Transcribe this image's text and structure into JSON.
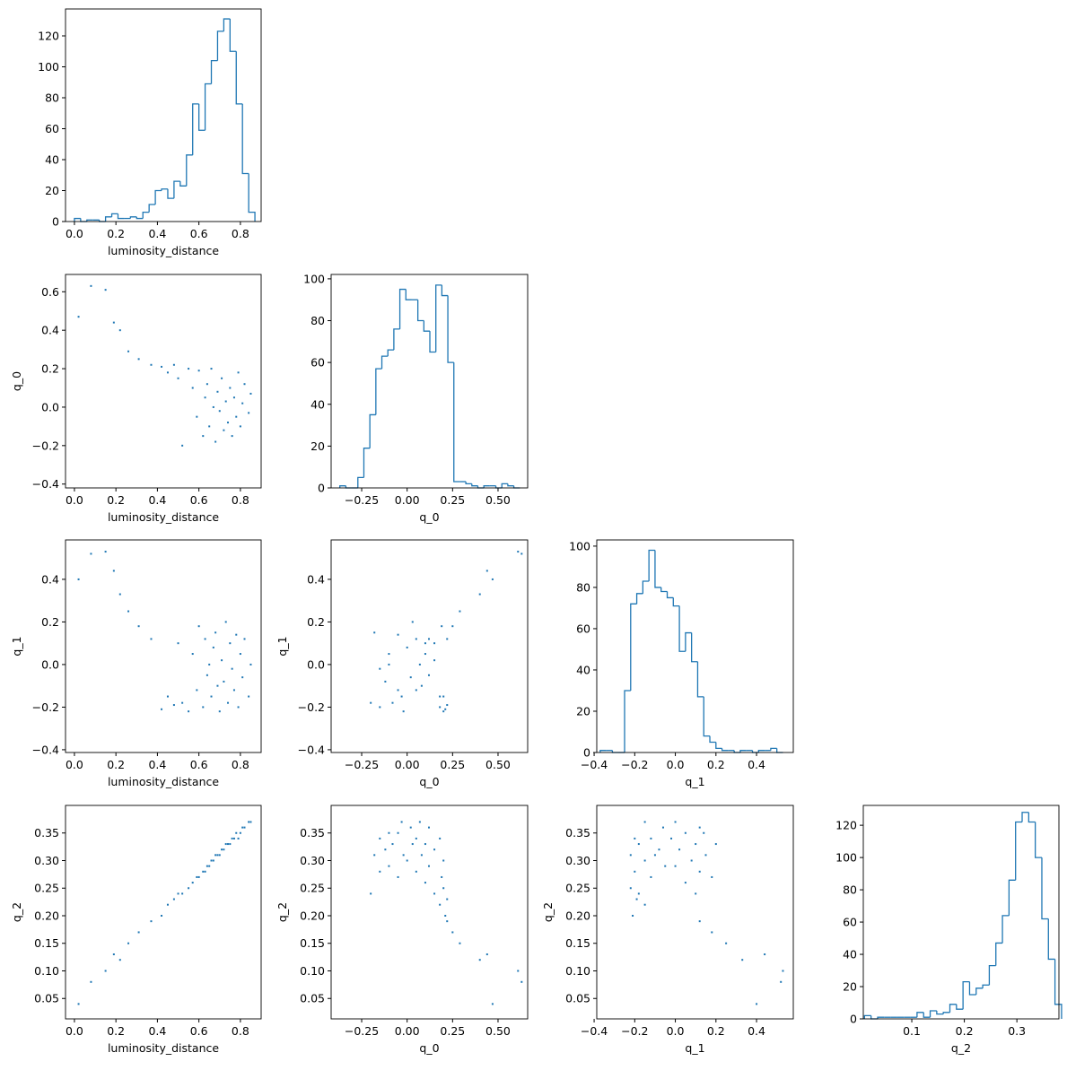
{
  "chart_data": [
    {
      "type": "histogram",
      "color": "#1f77b4",
      "xlabel": "luminosity_distance",
      "bins": [
        0,
        0.03,
        0.06,
        0.09,
        0.12,
        0.15,
        0.18,
        0.21,
        0.24,
        0.27,
        0.3,
        0.33,
        0.36,
        0.39,
        0.42,
        0.45,
        0.48,
        0.51,
        0.54,
        0.57,
        0.6,
        0.63,
        0.66,
        0.69,
        0.72,
        0.75,
        0.78,
        0.81,
        0.84,
        0.87
      ],
      "values": [
        2,
        0,
        1,
        1,
        0,
        3,
        5,
        2,
        2,
        3,
        2,
        6,
        11,
        20,
        21,
        15,
        26,
        23,
        43,
        76,
        59,
        89,
        104,
        123,
        131,
        110,
        76,
        31,
        6
      ],
      "xlim": [
        -0.043,
        0.9
      ],
      "ylim": [
        0,
        137.4
      ],
      "xticks": [
        {
          "value": 0,
          "label": "0.0"
        },
        0.2,
        0.4,
        0.6,
        0.8
      ],
      "yticks": [
        0,
        20,
        40,
        60,
        80,
        100,
        120
      ]
    },
    {
      "type": "scatter",
      "color": "#1f77b4",
      "xlabel": "luminosity_distance",
      "ylabel": "q_0",
      "x": [
        0.02,
        0.08,
        0.15,
        0.19,
        0.22,
        0.26,
        0.31,
        0.37,
        0.42,
        0.45,
        0.48,
        0.5,
        0.52,
        0.55,
        0.57,
        0.59,
        0.6,
        0.62,
        0.63,
        0.64,
        0.65,
        0.66,
        0.67,
        0.68,
        0.69,
        0.7,
        0.71,
        0.72,
        0.73,
        0.74,
        0.75,
        0.76,
        0.77,
        0.78,
        0.79,
        0.8,
        0.81,
        0.82,
        0.84,
        0.85
      ],
      "y": [
        0.47,
        0.63,
        0.61,
        0.44,
        0.4,
        0.29,
        0.25,
        0.22,
        0.21,
        0.18,
        0.22,
        0.15,
        -0.2,
        0.2,
        0.1,
        -0.05,
        0.19,
        -0.15,
        0.05,
        0.12,
        -0.1,
        0.2,
        0.0,
        -0.18,
        0.08,
        -0.02,
        0.15,
        -0.12,
        0.03,
        -0.08,
        0.1,
        -0.15,
        0.05,
        -0.05,
        0.18,
        -0.1,
        0.02,
        0.12,
        -0.03,
        0.07
      ],
      "xlim": [
        -0.043,
        0.9
      ],
      "ylim": [
        -0.42,
        0.69
      ],
      "xticks": [
        {
          "value": 0,
          "label": "0.0"
        },
        0.2,
        0.4,
        0.6,
        0.8
      ],
      "yticks": [
        {
          "value": -0.4,
          "label": "−0.4"
        },
        {
          "value": -0.2,
          "label": "−0.2"
        },
        {
          "value": 0,
          "label": "0.0"
        },
        0.2,
        0.4,
        0.6
      ]
    },
    {
      "type": "histogram",
      "color": "#1f77b4",
      "xlabel": "q_0",
      "bins": [
        -0.37,
        -0.337,
        -0.304,
        -0.271,
        -0.238,
        -0.205,
        -0.172,
        -0.139,
        -0.106,
        -0.073,
        -0.04,
        -0.007,
        0.026,
        0.059,
        0.092,
        0.125,
        0.158,
        0.191,
        0.224,
        0.257,
        0.29,
        0.323,
        0.356,
        0.389,
        0.422,
        0.455,
        0.488,
        0.521,
        0.554,
        0.587,
        0.62
      ],
      "values": [
        1,
        0,
        0,
        5,
        19,
        35,
        57,
        63,
        66,
        76,
        95,
        90,
        90,
        80,
        75,
        65,
        97,
        92,
        60,
        3,
        3,
        2,
        1,
        0,
        1,
        1,
        0,
        2,
        1,
        0
      ],
      "xlim": [
        -0.418,
        0.663
      ],
      "ylim": [
        0,
        102.1
      ],
      "xticks": [
        {
          "value": -0.25,
          "label": "−0.25"
        },
        {
          "value": 0,
          "label": "0.00"
        },
        0.25,
        {
          "value": 0.5,
          "label": "0.50"
        }
      ],
      "yticks": [
        0,
        20,
        40,
        60,
        80,
        100
      ]
    },
    {
      "type": "scatter",
      "color": "#1f77b4",
      "xlabel": "luminosity_distance",
      "ylabel": "q_1",
      "x": [
        0.02,
        0.08,
        0.15,
        0.19,
        0.22,
        0.26,
        0.31,
        0.37,
        0.42,
        0.45,
        0.48,
        0.5,
        0.52,
        0.55,
        0.57,
        0.59,
        0.6,
        0.62,
        0.63,
        0.64,
        0.65,
        0.66,
        0.67,
        0.68,
        0.69,
        0.7,
        0.71,
        0.72,
        0.73,
        0.74,
        0.75,
        0.76,
        0.77,
        0.78,
        0.79,
        0.8,
        0.81,
        0.82,
        0.84,
        0.85
      ],
      "y": [
        0.4,
        0.52,
        0.53,
        0.44,
        0.33,
        0.25,
        0.18,
        0.12,
        -0.21,
        -0.15,
        -0.19,
        0.1,
        -0.18,
        -0.22,
        0.05,
        -0.12,
        0.18,
        -0.2,
        0.12,
        -0.05,
        0.0,
        -0.15,
        0.08,
        0.15,
        -0.1,
        -0.22,
        0.02,
        -0.08,
        0.2,
        -0.18,
        0.1,
        -0.02,
        -0.12,
        0.14,
        -0.2,
        0.05,
        -0.06,
        0.12,
        -0.15,
        0.0
      ],
      "xlim": [
        -0.043,
        0.9
      ],
      "ylim": [
        -0.413,
        0.585
      ],
      "xticks": [
        {
          "value": 0,
          "label": "0.0"
        },
        0.2,
        0.4,
        0.6,
        0.8
      ],
      "yticks": [
        {
          "value": -0.4,
          "label": "−0.4"
        },
        {
          "value": -0.2,
          "label": "−0.2"
        },
        {
          "value": 0,
          "label": "0.0"
        },
        0.2,
        0.4
      ]
    },
    {
      "type": "scatter",
      "color": "#1f77b4",
      "xlabel": "q_0",
      "ylabel": "q_1",
      "x": [
        0.47,
        0.63,
        0.61,
        0.44,
        0.4,
        0.29,
        0.25,
        0.22,
        0.21,
        0.18,
        0.22,
        0.15,
        -0.2,
        0.2,
        0.1,
        -0.05,
        0.19,
        -0.15,
        0.05,
        0.12,
        -0.1,
        0.2,
        0.0,
        -0.18,
        0.08,
        -0.02,
        0.15,
        -0.12,
        0.03,
        -0.08,
        0.1,
        -0.15,
        0.05,
        -0.05,
        0.18,
        -0.1,
        0.02,
        0.12,
        -0.03,
        0.07
      ],
      "y": [
        0.4,
        0.52,
        0.53,
        0.44,
        0.33,
        0.25,
        0.18,
        0.12,
        -0.21,
        -0.15,
        -0.19,
        0.1,
        -0.18,
        -0.22,
        0.05,
        -0.12,
        0.18,
        -0.2,
        0.12,
        -0.05,
        0.0,
        -0.15,
        0.08,
        0.15,
        -0.1,
        -0.22,
        0.02,
        -0.08,
        0.2,
        -0.18,
        0.1,
        -0.02,
        -0.12,
        0.14,
        -0.2,
        0.05,
        -0.06,
        0.12,
        -0.15,
        0.0
      ],
      "xlim": [
        -0.418,
        0.663
      ],
      "ylim": [
        -0.413,
        0.585
      ],
      "xticks": [
        {
          "value": -0.25,
          "label": "−0.25"
        },
        {
          "value": 0,
          "label": "0.00"
        },
        0.25,
        {
          "value": 0.5,
          "label": "0.50"
        }
      ],
      "yticks": [
        {
          "value": -0.4,
          "label": "−0.4"
        },
        {
          "value": -0.2,
          "label": "−0.2"
        },
        {
          "value": 0,
          "label": "0.0"
        },
        0.2,
        0.4
      ]
    },
    {
      "type": "histogram",
      "color": "#1f77b4",
      "xlabel": "q_1",
      "bins": [
        -0.37,
        -0.34,
        -0.31,
        -0.28,
        -0.25,
        -0.22,
        -0.19,
        -0.16,
        -0.13,
        -0.1,
        -0.07,
        -0.04,
        -0.01,
        0.02,
        0.05,
        0.08,
        0.11,
        0.14,
        0.17,
        0.2,
        0.23,
        0.26,
        0.29,
        0.32,
        0.35,
        0.38,
        0.41,
        0.44,
        0.47,
        0.5,
        0.53
      ],
      "values": [
        1,
        1,
        0,
        0,
        30,
        72,
        77,
        83,
        98,
        80,
        78,
        75,
        71,
        49,
        58,
        44,
        27,
        8,
        5,
        2,
        1,
        1,
        0,
        1,
        1,
        0,
        1,
        1,
        2,
        0
      ],
      "xlim": [
        -0.387,
        0.581
      ],
      "ylim": [
        0,
        103
      ],
      "xticks": [
        {
          "value": -0.4,
          "label": "−0.4"
        },
        {
          "value": -0.2,
          "label": "−0.2"
        },
        {
          "value": 0,
          "label": "0.0"
        },
        0.2,
        0.4
      ],
      "yticks": [
        0,
        20,
        40,
        60,
        80,
        100
      ]
    },
    {
      "type": "scatter",
      "color": "#1f77b4",
      "xlabel": "luminosity_distance",
      "ylabel": "q_2",
      "x": [
        0.02,
        0.08,
        0.15,
        0.19,
        0.22,
        0.26,
        0.31,
        0.37,
        0.42,
        0.45,
        0.48,
        0.5,
        0.52,
        0.55,
        0.57,
        0.59,
        0.6,
        0.62,
        0.63,
        0.64,
        0.65,
        0.66,
        0.67,
        0.68,
        0.69,
        0.7,
        0.71,
        0.72,
        0.73,
        0.74,
        0.75,
        0.76,
        0.77,
        0.78,
        0.79,
        0.8,
        0.81,
        0.82,
        0.84,
        0.85
      ],
      "y": [
        0.04,
        0.08,
        0.1,
        0.13,
        0.12,
        0.15,
        0.17,
        0.19,
        0.2,
        0.22,
        0.23,
        0.24,
        0.24,
        0.25,
        0.26,
        0.27,
        0.27,
        0.28,
        0.28,
        0.29,
        0.29,
        0.3,
        0.3,
        0.31,
        0.31,
        0.31,
        0.32,
        0.32,
        0.33,
        0.33,
        0.33,
        0.34,
        0.34,
        0.35,
        0.34,
        0.35,
        0.36,
        0.36,
        0.37,
        0.37
      ],
      "xlim": [
        -0.043,
        0.9
      ],
      "ylim": [
        0.013,
        0.4
      ],
      "xticks": [
        {
          "value": 0,
          "label": "0.0"
        },
        0.2,
        0.4,
        0.6,
        0.8
      ],
      "yticks": [
        0.05,
        {
          "value": 0.1,
          "label": "0.10"
        },
        0.15,
        {
          "value": 0.2,
          "label": "0.20"
        },
        0.25,
        {
          "value": 0.3,
          "label": "0.30"
        },
        0.35
      ]
    },
    {
      "type": "scatter",
      "color": "#1f77b4",
      "xlabel": "q_0",
      "ylabel": "q_2",
      "x": [
        0.47,
        0.63,
        0.61,
        0.44,
        0.4,
        0.29,
        0.25,
        0.22,
        0.21,
        0.18,
        0.22,
        0.15,
        -0.2,
        0.2,
        0.1,
        -0.05,
        0.19,
        -0.15,
        0.05,
        0.12,
        -0.1,
        0.2,
        0.0,
        -0.18,
        0.08,
        -0.02,
        0.15,
        -0.12,
        0.03,
        -0.08,
        0.1,
        -0.15,
        0.05,
        -0.05,
        0.18,
        -0.1,
        0.02,
        0.12,
        -0.03,
        0.07
      ],
      "y": [
        0.04,
        0.08,
        0.1,
        0.13,
        0.12,
        0.15,
        0.17,
        0.19,
        0.2,
        0.22,
        0.23,
        0.24,
        0.24,
        0.25,
        0.26,
        0.27,
        0.27,
        0.28,
        0.28,
        0.29,
        0.29,
        0.3,
        0.3,
        0.31,
        0.31,
        0.31,
        0.32,
        0.32,
        0.33,
        0.33,
        0.33,
        0.34,
        0.34,
        0.35,
        0.34,
        0.35,
        0.36,
        0.36,
        0.37,
        0.37
      ],
      "xlim": [
        -0.418,
        0.663
      ],
      "ylim": [
        0.013,
        0.4
      ],
      "xticks": [
        {
          "value": -0.25,
          "label": "−0.25"
        },
        {
          "value": 0,
          "label": "0.00"
        },
        0.25,
        {
          "value": 0.5,
          "label": "0.50"
        }
      ],
      "yticks": [
        0.05,
        {
          "value": 0.1,
          "label": "0.10"
        },
        0.15,
        {
          "value": 0.2,
          "label": "0.20"
        },
        0.25,
        {
          "value": 0.3,
          "label": "0.30"
        },
        0.35
      ]
    },
    {
      "type": "scatter",
      "color": "#1f77b4",
      "xlabel": "q_1",
      "ylabel": "q_2",
      "x": [
        0.4,
        0.52,
        0.53,
        0.44,
        0.33,
        0.25,
        0.18,
        0.12,
        -0.21,
        -0.15,
        -0.19,
        0.1,
        -0.18,
        -0.22,
        0.05,
        -0.12,
        0.18,
        -0.2,
        0.12,
        -0.05,
        0.0,
        -0.15,
        0.08,
        0.15,
        -0.1,
        -0.22,
        0.02,
        -0.08,
        0.2,
        -0.18,
        0.1,
        -0.02,
        -0.12,
        0.14,
        -0.2,
        0.05,
        -0.06,
        0.12,
        -0.15,
        0.0
      ],
      "y": [
        0.04,
        0.08,
        0.1,
        0.13,
        0.12,
        0.15,
        0.17,
        0.19,
        0.2,
        0.22,
        0.23,
        0.24,
        0.24,
        0.25,
        0.26,
        0.27,
        0.27,
        0.28,
        0.28,
        0.29,
        0.29,
        0.3,
        0.3,
        0.31,
        0.31,
        0.31,
        0.32,
        0.32,
        0.33,
        0.33,
        0.33,
        0.34,
        0.34,
        0.35,
        0.34,
        0.35,
        0.36,
        0.36,
        0.37,
        0.37
      ],
      "xlim": [
        -0.387,
        0.581
      ],
      "ylim": [
        0.013,
        0.4
      ],
      "xticks": [
        {
          "value": -0.4,
          "label": "−0.4"
        },
        {
          "value": -0.2,
          "label": "−0.2"
        },
        {
          "value": 0,
          "label": "0.0"
        },
        0.2,
        0.4
      ],
      "yticks": [
        0.05,
        {
          "value": 0.1,
          "label": "0.10"
        },
        0.15,
        {
          "value": 0.2,
          "label": "0.20"
        },
        0.25,
        {
          "value": 0.3,
          "label": "0.30"
        },
        0.35
      ]
    },
    {
      "type": "histogram",
      "color": "#1f77b4",
      "xlabel": "q_2",
      "bins": [
        0.01,
        0.0225,
        0.035,
        0.0475,
        0.06,
        0.0725,
        0.085,
        0.0975,
        0.11,
        0.1225,
        0.135,
        0.1475,
        0.16,
        0.1725,
        0.185,
        0.1975,
        0.21,
        0.2225,
        0.235,
        0.2475,
        0.26,
        0.2725,
        0.285,
        0.2975,
        0.31,
        0.3225,
        0.335,
        0.3475,
        0.36,
        0.3725,
        0.385
      ],
      "values": [
        2,
        0,
        1,
        1,
        1,
        1,
        1,
        1,
        4,
        1,
        5,
        3,
        4,
        9,
        6,
        23,
        15,
        19,
        21,
        33,
        47,
        64,
        86,
        122,
        128,
        122,
        100,
        62,
        37,
        9
      ],
      "xlim": [
        0.0077,
        0.38
      ],
      "ylim": [
        0,
        132.3
      ],
      "xticks": [
        0.1,
        0.2,
        0.3
      ],
      "yticks": [
        0,
        20,
        40,
        60,
        80,
        100,
        120
      ]
    }
  ]
}
